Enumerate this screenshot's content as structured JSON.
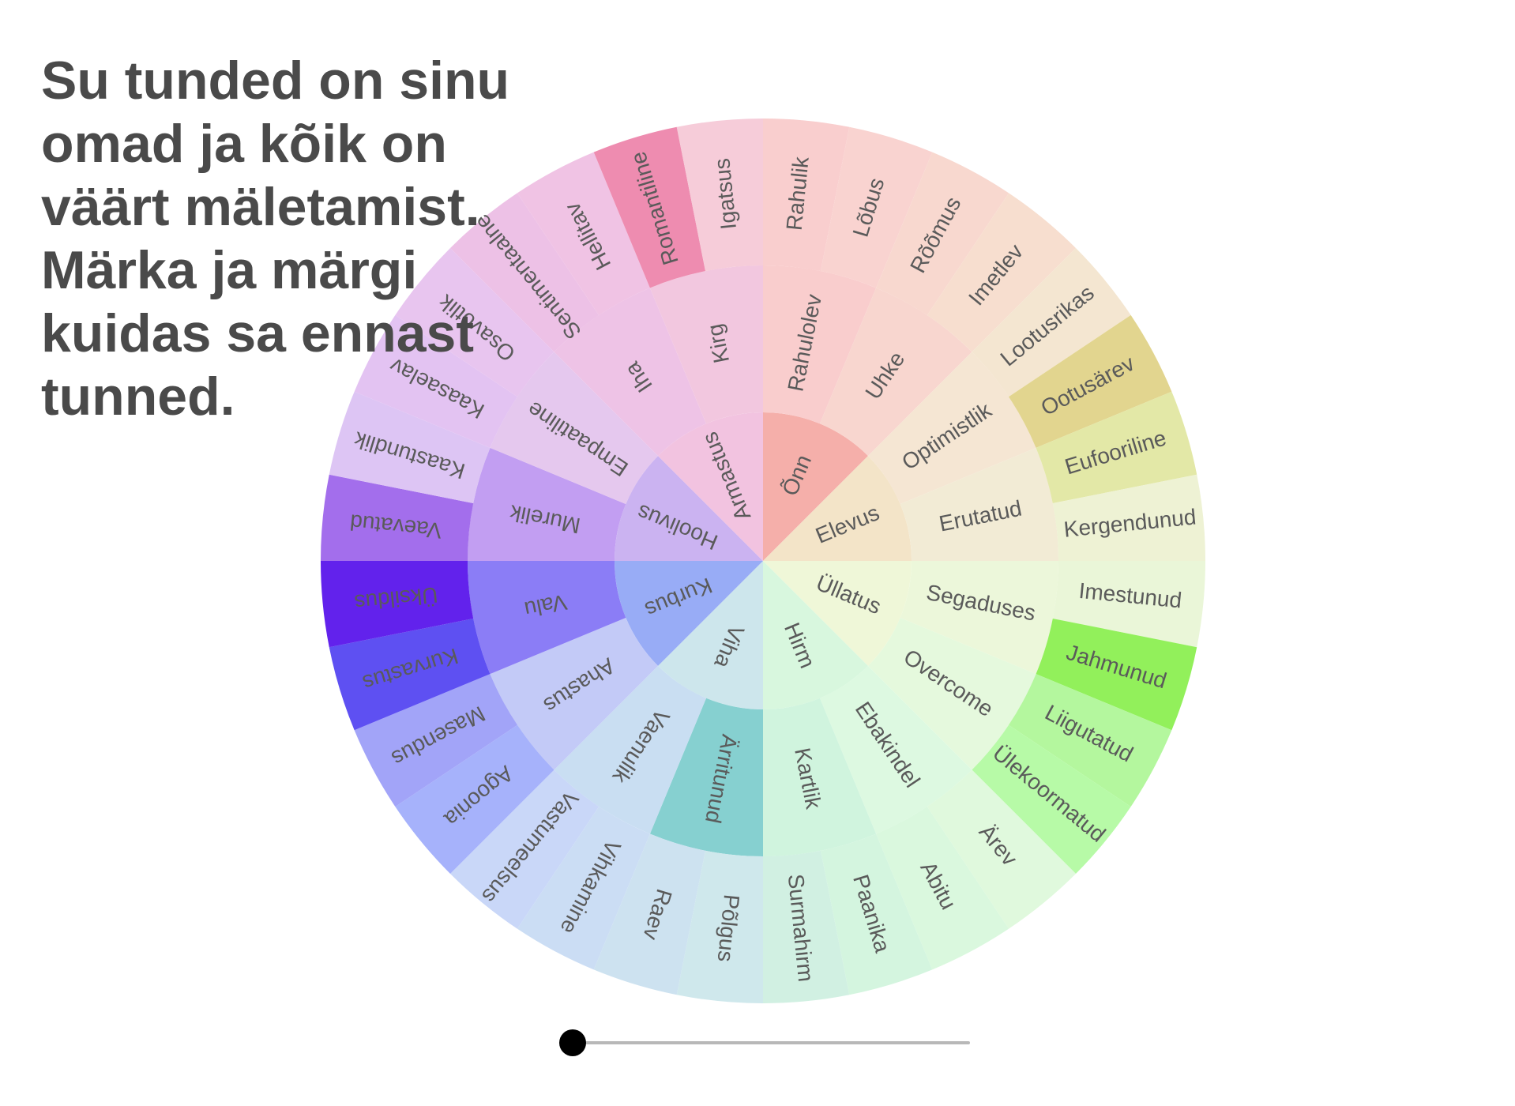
{
  "headline": {
    "lines": [
      "Su tunded on sinu",
      "omad ja kõik on",
      "väärt mäletamist.",
      "Märka ja märgi",
      "kuidas sa ennast",
      "tunned."
    ]
  },
  "slider": {
    "value": 0
  },
  "wheel": {
    "core": [
      {
        "label": "Õnn",
        "color": "#F5AFAA"
      },
      {
        "label": "Elevus",
        "color": "#F3E4C8"
      },
      {
        "label": "Üllatus",
        "color": "#EFF7D8"
      },
      {
        "label": "Hirm",
        "color": "#D8F7DE"
      },
      {
        "label": "Viha",
        "color": "#CDE6EC"
      },
      {
        "label": "Kurbus",
        "color": "#98ACF6"
      },
      {
        "label": "Hoolivus",
        "color": "#CBB3F1"
      },
      {
        "label": "Armastus",
        "color": "#F2C3E0"
      }
    ],
    "middle": [
      {
        "label": "Rahulolev",
        "color": "#F9CDCD"
      },
      {
        "label": "Uhke",
        "color": "#F8D6CF"
      },
      {
        "label": "Optimistlik",
        "color": "#F5E6D3"
      },
      {
        "label": "Erutatud",
        "color": "#F2EBD5"
      },
      {
        "label": "Segaduses",
        "color": "#ECF7DA"
      },
      {
        "label": "Overcome",
        "color": "#E5F9DD"
      },
      {
        "label": "Ebakindel",
        "color": "#DDF9E1"
      },
      {
        "label": "Kartlik",
        "color": "#D0F4DE"
      },
      {
        "label": "Ärritunud",
        "color": "#86D0D0"
      },
      {
        "label": "Vaenulik",
        "color": "#C9DEF2"
      },
      {
        "label": "Ahastus",
        "color": "#C3CAF7"
      },
      {
        "label": "Valu",
        "color": "#8B7DF6"
      },
      {
        "label": "Murelik",
        "color": "#C29EF2"
      },
      {
        "label": "Empaatiline",
        "color": "#E5C8EE"
      },
      {
        "label": "Iha",
        "color": "#EEC3E6"
      },
      {
        "label": "Kirg",
        "color": "#F2C7DF"
      }
    ],
    "outer": [
      {
        "label": "Rahulik",
        "color": "#F9CECE"
      },
      {
        "label": "Lõbus",
        "color": "#F9D3D0"
      },
      {
        "label": "Rõõmus",
        "color": "#F8D8CF"
      },
      {
        "label": "Imetlev",
        "color": "#F7DECF"
      },
      {
        "label": "Lootusrikas",
        "color": "#F4E6D1"
      },
      {
        "label": "Ootusärev",
        "color": "#E2D58F"
      },
      {
        "label": "Eufooriline",
        "color": "#E3E8A7"
      },
      {
        "label": "Kergendunud",
        "color": "#EEF2D4"
      },
      {
        "label": "Imestunud",
        "color": "#EAF6D8"
      },
      {
        "label": "Jahmunud",
        "color": "#92F05B"
      },
      {
        "label": "Liigutatud",
        "color": "#B4F79E"
      },
      {
        "label": "Ülekoormatud",
        "color": "#B7FAA7"
      },
      {
        "label": "Ärev",
        "color": "#E0F9DD"
      },
      {
        "label": "Abitu",
        "color": "#DAF8DE"
      },
      {
        "label": "Paanika",
        "color": "#D4F5DF"
      },
      {
        "label": "Surmahirm",
        "color": "#D1F0E2"
      },
      {
        "label": "Põlgus",
        "color": "#CFE8EC"
      },
      {
        "label": "Raev",
        "color": "#CDE2F0"
      },
      {
        "label": "Vihkamine",
        "color": "#CBDDF4"
      },
      {
        "label": "Vastumeelsus",
        "color": "#C9D7F8"
      },
      {
        "label": "Agoonia",
        "color": "#A6B2FB"
      },
      {
        "label": "Masendus",
        "color": "#A2A4F8"
      },
      {
        "label": "Kurvastus",
        "color": "#5E50F2"
      },
      {
        "label": "Üksildus",
        "color": "#6222EC"
      },
      {
        "label": "Vaevatud",
        "color": "#A36EEC"
      },
      {
        "label": "Kaastundlik",
        "color": "#DDC5F4"
      },
      {
        "label": "Kaasaelav",
        "color": "#E3C3F2"
      },
      {
        "label": "Osavõtlik",
        "color": "#E8C5EF"
      },
      {
        "label": "Sentimentaalne",
        "color": "#EDC1E6"
      },
      {
        "label": "Hellitav",
        "color": "#F0C3E4"
      },
      {
        "label": "Romantiline",
        "color": "#EE8CB0"
      },
      {
        "label": "Igatsus",
        "color": "#F6CCD9"
      }
    ]
  }
}
